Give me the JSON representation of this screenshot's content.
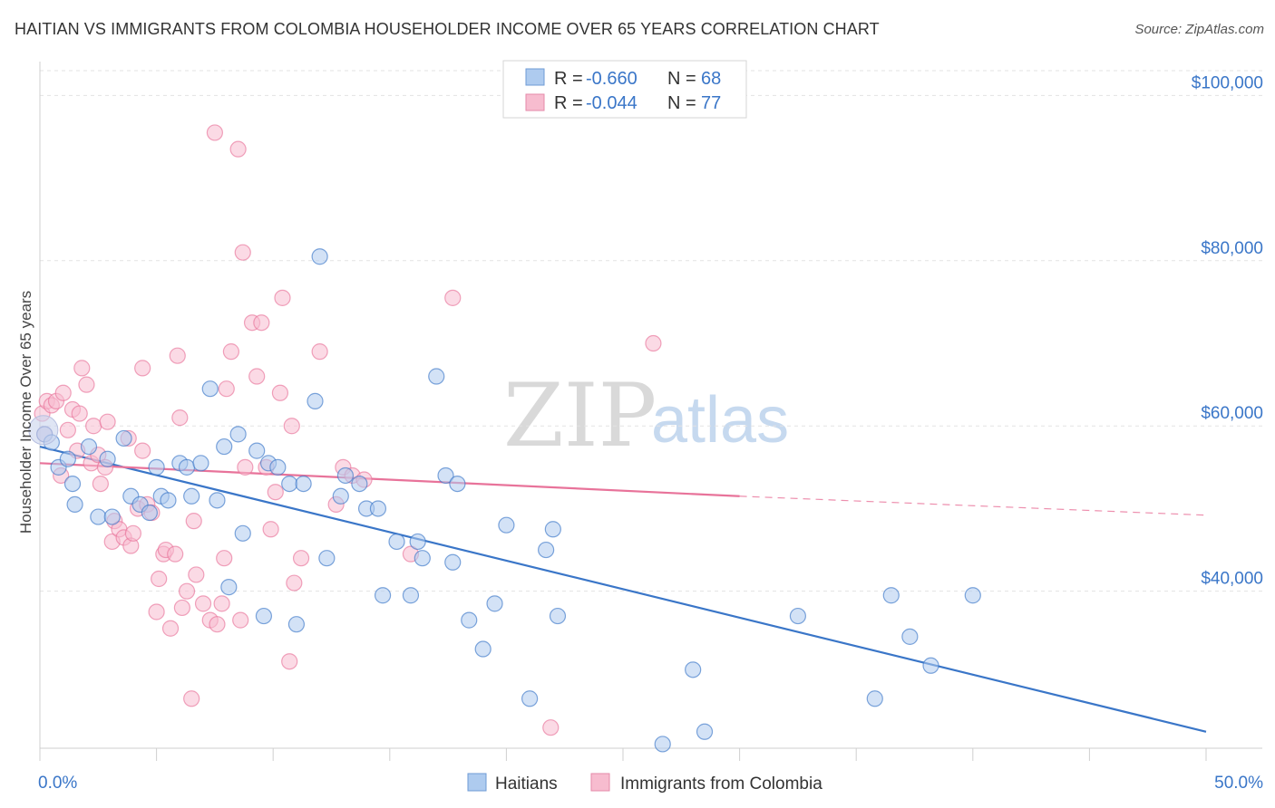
{
  "title": "HAITIAN VS IMMIGRANTS FROM COLOMBIA HOUSEHOLDER INCOME OVER 65 YEARS CORRELATION CHART",
  "source": "Source: ZipAtlas.com",
  "watermark": {
    "zip": "ZIP",
    "atlas": "atlas"
  },
  "legend_top": [
    {
      "r_label": "R =",
      "r_value": "-0.660",
      "n_label": "N =",
      "n_value": "68"
    },
    {
      "r_label": "R =",
      "r_value": "-0.044",
      "n_label": "N =",
      "n_value": "77"
    }
  ],
  "chart_data": {
    "type": "scatter",
    "title": "HAITIAN VS IMMIGRANTS FROM COLOMBIA HOUSEHOLDER INCOME OVER 65 YEARS CORRELATION CHART",
    "xlabel": "",
    "ylabel": "Householder Income Over 65 years",
    "xlim": [
      0,
      50
    ],
    "ylim": [
      21000,
      103000
    ],
    "x_tick_labels": [
      "0.0%",
      "50.0%"
    ],
    "y_ticks": [
      {
        "value": 40000,
        "label": "$40,000"
      },
      {
        "value": 60000,
        "label": "$60,000"
      },
      {
        "value": 80000,
        "label": "$80,000"
      },
      {
        "value": 100000,
        "label": "$100,000"
      }
    ],
    "grid": true,
    "legend_position": "bottom",
    "series": [
      {
        "name": "Haitians",
        "color": "#3a76c8",
        "fill": "#aecbef",
        "r": -0.66,
        "n": 68,
        "trend": {
          "x": [
            0,
            50
          ],
          "y": [
            57500,
            23000
          ]
        },
        "points": [
          [
            0.2,
            59000
          ],
          [
            0.5,
            58000
          ],
          [
            0.8,
            55000
          ],
          [
            1.2,
            56000
          ],
          [
            1.4,
            53000
          ],
          [
            1.5,
            50500
          ],
          [
            2.1,
            57500
          ],
          [
            2.5,
            49000
          ],
          [
            2.9,
            56000
          ],
          [
            3.1,
            49000
          ],
          [
            3.6,
            58500
          ],
          [
            3.9,
            51500
          ],
          [
            4.3,
            50500
          ],
          [
            4.7,
            49500
          ],
          [
            5.0,
            55000
          ],
          [
            5.2,
            51500
          ],
          [
            5.5,
            51000
          ],
          [
            6.0,
            55500
          ],
          [
            6.3,
            55000
          ],
          [
            6.5,
            51500
          ],
          [
            6.9,
            55500
          ],
          [
            7.3,
            64500
          ],
          [
            7.6,
            51000
          ],
          [
            7.9,
            57500
          ],
          [
            8.1,
            40500
          ],
          [
            8.5,
            59000
          ],
          [
            8.7,
            47000
          ],
          [
            9.3,
            57000
          ],
          [
            9.6,
            37000
          ],
          [
            9.8,
            55500
          ],
          [
            10.2,
            55000
          ],
          [
            10.7,
            53000
          ],
          [
            11.0,
            36000
          ],
          [
            11.3,
            53000
          ],
          [
            11.8,
            63000
          ],
          [
            12.0,
            80500
          ],
          [
            12.3,
            44000
          ],
          [
            12.9,
            51500
          ],
          [
            13.1,
            54000
          ],
          [
            13.7,
            53000
          ],
          [
            14.0,
            50000
          ],
          [
            14.5,
            50000
          ],
          [
            14.7,
            39500
          ],
          [
            15.3,
            46000
          ],
          [
            15.9,
            39500
          ],
          [
            16.2,
            46000
          ],
          [
            16.4,
            44000
          ],
          [
            17.0,
            66000
          ],
          [
            17.4,
            54000
          ],
          [
            17.7,
            43500
          ],
          [
            17.9,
            53000
          ],
          [
            18.4,
            36500
          ],
          [
            19.0,
            33000
          ],
          [
            19.5,
            38500
          ],
          [
            20.0,
            48000
          ],
          [
            21.0,
            27000
          ],
          [
            21.7,
            45000
          ],
          [
            22.0,
            47500
          ],
          [
            22.2,
            37000
          ],
          [
            26.7,
            21500
          ],
          [
            28.0,
            30500
          ],
          [
            28.5,
            23000
          ],
          [
            32.5,
            37000
          ],
          [
            35.8,
            27000
          ],
          [
            36.5,
            39500
          ],
          [
            37.3,
            34500
          ],
          [
            38.2,
            31000
          ],
          [
            40.0,
            39500
          ]
        ]
      },
      {
        "name": "Immigrants from Colombia",
        "color": "#e8739a",
        "fill": "#f7bccf",
        "r": -0.044,
        "n": 77,
        "trend": {
          "x": [
            0,
            30
          ],
          "y": [
            55500,
            51500
          ]
        },
        "trend_dashed": {
          "x": [
            30,
            50
          ],
          "y": [
            51500,
            49200
          ]
        },
        "points": [
          [
            0.1,
            61500
          ],
          [
            0.2,
            59000
          ],
          [
            0.3,
            63000
          ],
          [
            0.5,
            62500
          ],
          [
            0.7,
            63000
          ],
          [
            0.9,
            54000
          ],
          [
            1.0,
            64000
          ],
          [
            1.2,
            59500
          ],
          [
            1.4,
            62000
          ],
          [
            1.6,
            57000
          ],
          [
            1.7,
            61500
          ],
          [
            1.8,
            67000
          ],
          [
            2.0,
            65000
          ],
          [
            2.2,
            55500
          ],
          [
            2.3,
            60000
          ],
          [
            2.5,
            56500
          ],
          [
            2.6,
            53000
          ],
          [
            2.8,
            55000
          ],
          [
            2.9,
            60500
          ],
          [
            3.1,
            46000
          ],
          [
            3.2,
            48500
          ],
          [
            3.4,
            47500
          ],
          [
            3.6,
            46500
          ],
          [
            3.8,
            58500
          ],
          [
            3.9,
            45500
          ],
          [
            4.0,
            47000
          ],
          [
            4.2,
            50000
          ],
          [
            4.4,
            57000
          ],
          [
            4.4,
            67000
          ],
          [
            4.6,
            50500
          ],
          [
            4.8,
            49500
          ],
          [
            5.0,
            37500
          ],
          [
            5.1,
            41500
          ],
          [
            5.3,
            44500
          ],
          [
            5.4,
            45000
          ],
          [
            5.6,
            35500
          ],
          [
            5.8,
            44500
          ],
          [
            5.9,
            68500
          ],
          [
            6.0,
            61000
          ],
          [
            6.1,
            38000
          ],
          [
            6.3,
            40000
          ],
          [
            6.5,
            27000
          ],
          [
            6.6,
            48500
          ],
          [
            6.7,
            42000
          ],
          [
            7.0,
            38500
          ],
          [
            7.3,
            36500
          ],
          [
            7.5,
            95500
          ],
          [
            7.6,
            36000
          ],
          [
            7.8,
            38500
          ],
          [
            7.9,
            44000
          ],
          [
            8.0,
            64500
          ],
          [
            8.2,
            69000
          ],
          [
            8.5,
            93500
          ],
          [
            8.6,
            36500
          ],
          [
            8.7,
            81000
          ],
          [
            8.8,
            55000
          ],
          [
            9.1,
            72500
          ],
          [
            9.3,
            66000
          ],
          [
            9.5,
            72500
          ],
          [
            9.7,
            55000
          ],
          [
            9.9,
            47500
          ],
          [
            10.1,
            52000
          ],
          [
            10.3,
            64000
          ],
          [
            10.4,
            75500
          ],
          [
            10.7,
            31500
          ],
          [
            10.8,
            60000
          ],
          [
            10.9,
            41000
          ],
          [
            11.2,
            44000
          ],
          [
            12.0,
            69000
          ],
          [
            12.7,
            50500
          ],
          [
            13.0,
            55000
          ],
          [
            13.4,
            54000
          ],
          [
            13.9,
            53500
          ],
          [
            15.9,
            44500
          ],
          [
            17.7,
            75500
          ],
          [
            21.9,
            23500
          ],
          [
            26.3,
            70000
          ]
        ]
      }
    ]
  }
}
